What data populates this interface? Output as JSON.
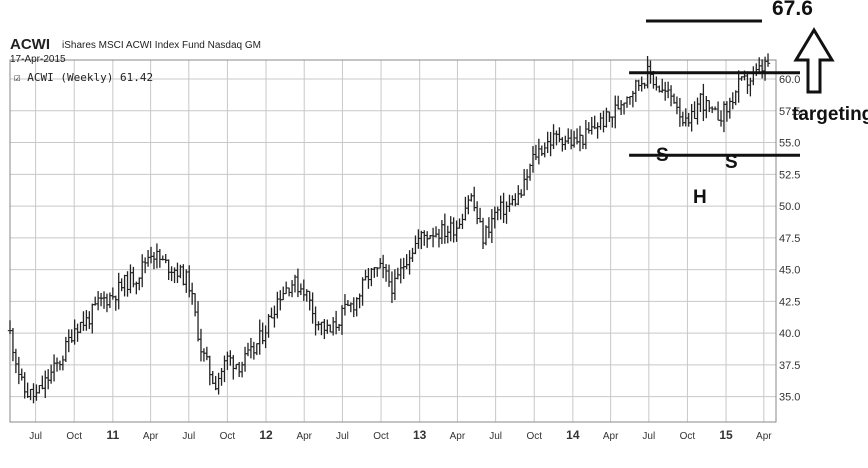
{
  "header": {
    "ticker": "ACWI",
    "fund_name": "iShares MSCI ACWI Index Fund Nasdaq GM",
    "date": "17-Apr-2015",
    "series_label": "ACWI (Weekly) 61.42"
  },
  "annotations": {
    "target_value": "67.6",
    "targeting_text": "targeting",
    "shoulder_left": "S",
    "shoulder_right": "S",
    "head": "H"
  },
  "colors": {
    "price_bars": "#222222",
    "grid": "#c8c8c8",
    "annotation": "#111111",
    "background": "#ffffff"
  },
  "chart_data": {
    "type": "ohlc",
    "title": "ACWI iShares MSCI ACWI Index Fund Nasdaq GM",
    "series": [
      {
        "name": "ACWI (Weekly) 61.42",
        "x": [
          "2010-05-01",
          "2010-06-01",
          "2010-07-01",
          "2010-08-01",
          "2010-09-01",
          "2010-10-01",
          "2010-11-01",
          "2010-12-01",
          "2011-01-01",
          "2011-02-01",
          "2011-03-01",
          "2011-04-01",
          "2011-05-01",
          "2011-06-01",
          "2011-07-01",
          "2011-08-01",
          "2011-09-01",
          "2011-10-01",
          "2011-11-01",
          "2011-12-01",
          "2012-01-01",
          "2012-02-01",
          "2012-03-01",
          "2012-04-01",
          "2012-05-01",
          "2012-06-01",
          "2012-07-01",
          "2012-08-01",
          "2012-09-01",
          "2012-10-01",
          "2012-11-01",
          "2012-12-01",
          "2013-01-01",
          "2013-02-01",
          "2013-03-01",
          "2013-04-01",
          "2013-05-01",
          "2013-06-01",
          "2013-07-01",
          "2013-08-01",
          "2013-09-01",
          "2013-10-01",
          "2013-11-01",
          "2013-12-01",
          "2014-01-01",
          "2014-02-01",
          "2014-03-01",
          "2014-04-01",
          "2014-05-01",
          "2014-06-01",
          "2014-07-01",
          "2014-08-01",
          "2014-09-01",
          "2014-10-01",
          "2014-11-01",
          "2014-12-01",
          "2015-01-01",
          "2015-02-01",
          "2015-03-01",
          "2015-04-17"
        ],
        "close": [
          40.0,
          35.5,
          35.0,
          36.5,
          38.0,
          40.5,
          41.0,
          42.5,
          43.0,
          44.0,
          44.5,
          46.5,
          45.5,
          45.0,
          44.0,
          38.5,
          36.0,
          38.0,
          37.5,
          38.5,
          40.5,
          43.0,
          44.0,
          43.5,
          41.0,
          40.0,
          41.5,
          42.5,
          44.5,
          45.0,
          43.5,
          46.0,
          47.5,
          48.0,
          48.0,
          48.5,
          51.0,
          47.5,
          49.5,
          50.0,
          51.0,
          54.0,
          55.0,
          55.5,
          55.0,
          55.5,
          56.5,
          57.0,
          58.5,
          59.5,
          60.5,
          59.0,
          58.5,
          56.0,
          58.5,
          57.0,
          57.5,
          59.5,
          60.0,
          61.42
        ]
      }
    ],
    "xlabel": "",
    "ylabel": "",
    "x_tick_labels": [
      "Jul",
      "Oct",
      "11",
      "Apr",
      "Jul",
      "Oct",
      "12",
      "Apr",
      "Jul",
      "Oct",
      "13",
      "Apr",
      "Jul",
      "Oct",
      "14",
      "Apr",
      "Jul",
      "Oct",
      "15",
      "Apr"
    ],
    "x_tick_dates": [
      "2010-07-01",
      "2010-10-01",
      "2011-01-01",
      "2011-04-01",
      "2011-07-01",
      "2011-10-01",
      "2012-01-01",
      "2012-04-01",
      "2012-07-01",
      "2012-10-01",
      "2013-01-01",
      "2013-04-01",
      "2013-07-01",
      "2013-10-01",
      "2014-01-01",
      "2014-04-01",
      "2014-07-01",
      "2014-10-01",
      "2015-01-01",
      "2015-04-01"
    ],
    "y_tick_labels": [
      "35.0",
      "37.5",
      "40.0",
      "42.5",
      "45.0",
      "47.5",
      "50.0",
      "52.5",
      "55.0",
      "57.5",
      "60.0"
    ],
    "y_ticks": [
      35.0,
      37.5,
      40.0,
      42.5,
      45.0,
      47.5,
      50.0,
      52.5,
      55.0,
      57.5,
      60.0
    ],
    "xlim": [
      "2010-05-01",
      "2015-04-30"
    ],
    "ylim": [
      33.0,
      61.5
    ],
    "y_axis_position": "right",
    "grid": true,
    "overlays": {
      "neckline": 60.5,
      "support_line": 54.0,
      "target": 67.6
    }
  }
}
